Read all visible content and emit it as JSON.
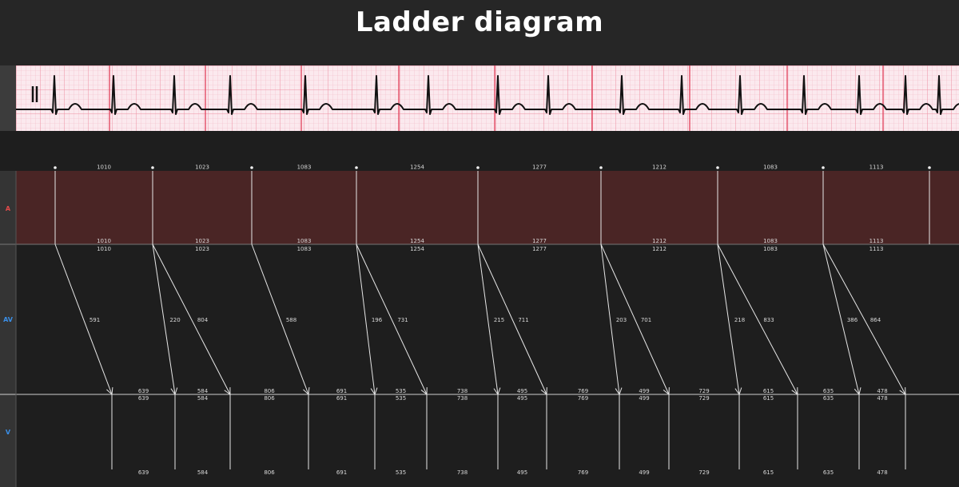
{
  "title": "Ladder diagram",
  "rows": {
    "a": {
      "label": "A",
      "color": "#e04a4a"
    },
    "av": {
      "label": "AV",
      "color": "#3a8ee6"
    },
    "v": {
      "label": "V",
      "color": "#3a8ee6"
    }
  },
  "colors": {
    "a_region": "#4a2525",
    "background": "#1e1e1e",
    "line": "#e6e6e6",
    "ecg_paper": "#fbe9ee",
    "ecg_grid": "#f3b9c6",
    "ecg_major": "#e0405a",
    "ecg_trace": "#111111"
  },
  "a_intervals": [
    "1010",
    "1023",
    "1083",
    "1254",
    "1277",
    "1212",
    "1083",
    "1113"
  ],
  "av_conduction": [
    {
      "times": [
        "591"
      ]
    },
    {
      "times": [
        "220",
        "804"
      ]
    },
    {
      "times": [
        "588"
      ]
    },
    {
      "times": [
        "196",
        "731"
      ]
    },
    {
      "times": [
        "215",
        "711"
      ]
    },
    {
      "times": [
        "203",
        "701"
      ]
    },
    {
      "times": [
        "218",
        "833"
      ]
    },
    {
      "times": [
        "386",
        "864"
      ]
    }
  ],
  "v_intervals": [
    "639",
    "584",
    "806",
    "691",
    "535",
    "738",
    "495",
    "769",
    "499",
    "729",
    "615",
    "635",
    "478"
  ]
}
